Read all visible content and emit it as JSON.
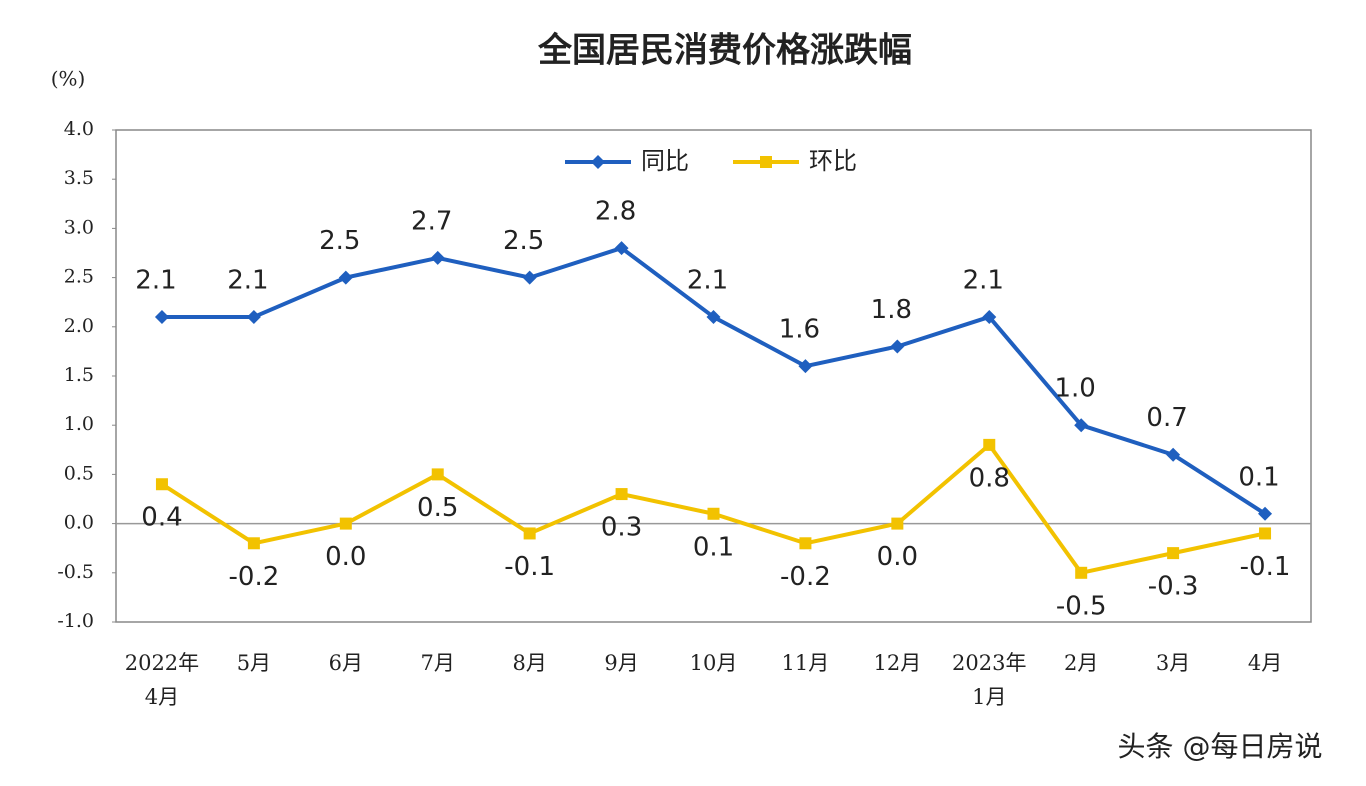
{
  "chart_data": {
    "type": "line",
    "title": "全国居民消费价格涨跌幅",
    "ylabel": "(%)",
    "categories": [
      "2022年\n4月",
      "5月",
      "6月",
      "7月",
      "8月",
      "9月",
      "10月",
      "11月",
      "12月",
      "2023年\n1月",
      "2月",
      "3月",
      "4月"
    ],
    "series": [
      {
        "name": "同比",
        "color": "#1f5fbf",
        "marker": "diamond",
        "values": [
          2.1,
          2.1,
          2.5,
          2.7,
          2.5,
          2.8,
          2.1,
          1.6,
          1.8,
          2.1,
          1.0,
          0.7,
          0.1
        ],
        "value_labels": [
          "2.1",
          "2.1",
          "2.5",
          "2.7",
          "2.5",
          "2.8",
          "2.1",
          "1.6",
          "1.8",
          "2.1",
          "1.0",
          "0.7",
          "0.1"
        ]
      },
      {
        "name": "环比",
        "color": "#f2c200",
        "marker": "square",
        "values": [
          0.4,
          -0.2,
          0.0,
          0.5,
          -0.1,
          0.3,
          0.1,
          -0.2,
          0.0,
          0.8,
          -0.5,
          -0.3,
          -0.1
        ],
        "value_labels": [
          "0.4",
          "-0.2",
          "0.0",
          "0.5",
          "-0.1",
          "0.3",
          "0.1",
          "-0.2",
          "0.0",
          "0.8",
          "-0.5",
          "-0.3",
          "-0.1"
        ]
      }
    ],
    "ylim": [
      -1.0,
      4.0
    ],
    "yticks": [
      {
        "value": -1.0,
        "label": "-1.0"
      },
      {
        "value": -0.5,
        "label": "-0.5"
      },
      {
        "value": 0,
        "label": "0.0"
      },
      {
        "value": 0.5,
        "label": "0.5"
      },
      {
        "value": 1.0,
        "label": "1.0"
      },
      {
        "value": 1.5,
        "label": "1.5"
      },
      {
        "value": 2.0,
        "label": "2.0"
      },
      {
        "value": 2.5,
        "label": "2.5"
      },
      {
        "value": 3.0,
        "label": "3.0"
      },
      {
        "value": 3.5,
        "label": "3.5"
      },
      {
        "value": 4.0,
        "label": "4.0"
      }
    ],
    "legend": "top",
    "grid": false,
    "watermark": "头条 @每日房说"
  }
}
